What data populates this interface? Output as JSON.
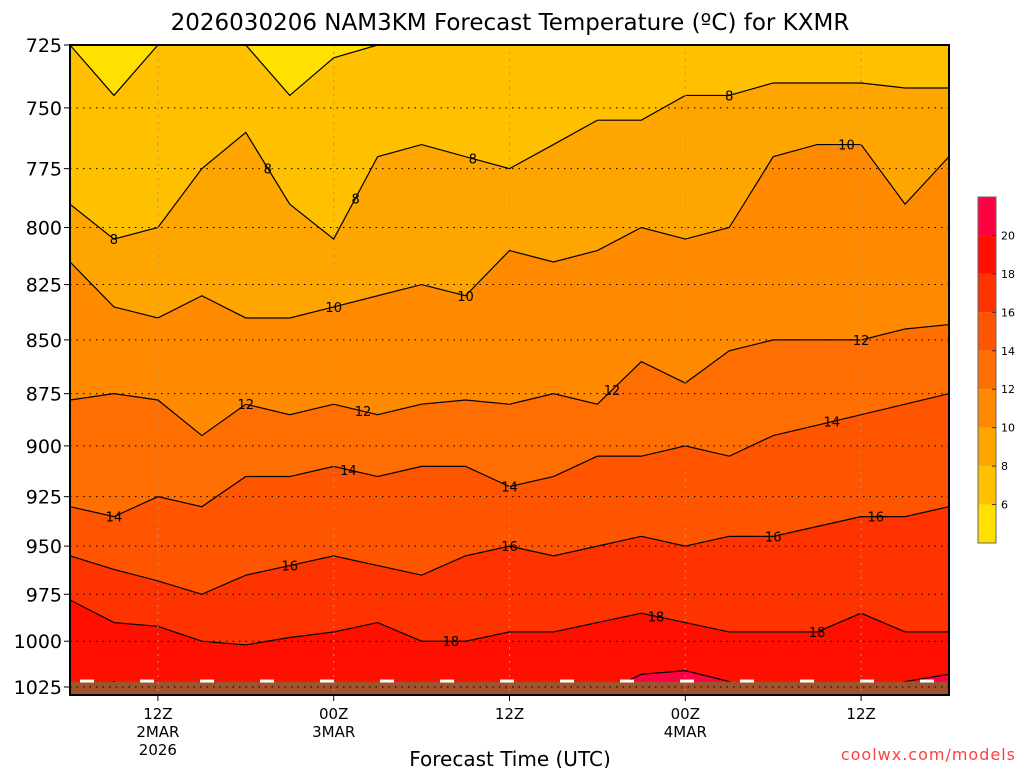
{
  "chart_data": {
    "type": "heatmap",
    "subtype": "filled-contour",
    "title": "2026030206 NAM3KM Forecast Temperature (ºC) for KXMR",
    "xlabel": "Forecast Time (UTC)",
    "ylabel": "",
    "watermark": "coolwx.com/models",
    "x_unit": "hours after 06Z 2MAR2026",
    "xlim": [
      0,
      60
    ],
    "ylim": [
      1030,
      725
    ],
    "y_scale": "log-pressure",
    "grid": true,
    "y_ticks": [
      725,
      750,
      775,
      800,
      825,
      850,
      875,
      900,
      925,
      950,
      975,
      1000,
      1025
    ],
    "x_ticks": [
      {
        "hour": 6,
        "lines": [
          "12Z",
          "2MAR",
          "2026"
        ]
      },
      {
        "hour": 18,
        "lines": [
          "00Z",
          "3MAR"
        ]
      },
      {
        "hour": 30,
        "lines": [
          "12Z"
        ]
      },
      {
        "hour": 42,
        "lines": [
          "00Z",
          "4MAR"
        ]
      },
      {
        "hour": 54,
        "lines": [
          "12Z"
        ]
      }
    ],
    "sample_hours": [
      0,
      3,
      6,
      9,
      12,
      15,
      18,
      21,
      24,
      27,
      30,
      33,
      36,
      39,
      42,
      45,
      48,
      51,
      54,
      57,
      60
    ],
    "isotherms": [
      {
        "level": 6,
        "pressure": [
          725,
          745,
          725,
          725,
          725,
          745,
          730,
          725,
          725,
          725,
          725,
          725,
          725,
          725,
          725,
          725,
          725,
          725,
          725,
          725,
          725
        ]
      },
      {
        "level": 8,
        "pressure": [
          790,
          805,
          800,
          775,
          760,
          790,
          805,
          770,
          765,
          770,
          775,
          765,
          755,
          755,
          745,
          745,
          740,
          740,
          740,
          742,
          742
        ]
      },
      {
        "level": 10,
        "pressure": [
          815,
          835,
          840,
          830,
          840,
          840,
          835,
          830,
          825,
          830,
          810,
          815,
          810,
          800,
          805,
          800,
          770,
          765,
          765,
          790,
          770
        ]
      },
      {
        "level": 12,
        "pressure": [
          878,
          875,
          878,
          895,
          880,
          885,
          880,
          885,
          880,
          878,
          880,
          875,
          880,
          860,
          870,
          855,
          850,
          850,
          850,
          845,
          843
        ]
      },
      {
        "level": 14,
        "pressure": [
          930,
          935,
          925,
          930,
          915,
          915,
          910,
          915,
          910,
          910,
          920,
          915,
          905,
          905,
          900,
          905,
          895,
          890,
          885,
          880,
          875
        ]
      },
      {
        "level": 16,
        "pressure": [
          955,
          962,
          968,
          975,
          965,
          960,
          955,
          960,
          965,
          955,
          950,
          955,
          950,
          945,
          950,
          945,
          945,
          940,
          935,
          935,
          930
        ]
      },
      {
        "level": 18,
        "pressure": [
          978,
          990,
          992,
          1000,
          1002,
          998,
          995,
          990,
          1000,
          1000,
          995,
          995,
          990,
          985,
          990,
          995,
          995,
          995,
          985,
          995,
          995
        ]
      },
      {
        "level": 20,
        "pressure": [
          1030,
          1022,
          1030,
          1030,
          1030,
          1030,
          1030,
          1030,
          1030,
          1030,
          1030,
          1030,
          1030,
          1018,
          1016,
          1022,
          1030,
          1030,
          1030,
          1022,
          1018
        ]
      }
    ],
    "surface_pressure": 1022,
    "contour_labels": [
      {
        "text": "8",
        "hour": 3,
        "level": 8
      },
      {
        "text": "8",
        "hour": 13.5,
        "level": 8
      },
      {
        "text": "8",
        "hour": 19.5,
        "level": 8
      },
      {
        "text": "8",
        "hour": 27.5,
        "level": 8
      },
      {
        "text": "8",
        "hour": 45,
        "level": 8
      },
      {
        "text": "10",
        "hour": 18,
        "level": 10
      },
      {
        "text": "10",
        "hour": 27,
        "level": 10
      },
      {
        "text": "10",
        "hour": 53,
        "level": 10
      },
      {
        "text": "12",
        "hour": 12,
        "level": 12
      },
      {
        "text": "12",
        "hour": 20,
        "level": 12
      },
      {
        "text": "12",
        "hour": 37,
        "level": 12
      },
      {
        "text": "12",
        "hour": 54,
        "level": 12
      },
      {
        "text": "14",
        "hour": 3,
        "level": 14
      },
      {
        "text": "14",
        "hour": 19,
        "level": 14
      },
      {
        "text": "14",
        "hour": 30,
        "level": 14
      },
      {
        "text": "14",
        "hour": 52,
        "level": 14
      },
      {
        "text": "16",
        "hour": 15,
        "level": 16
      },
      {
        "text": "16",
        "hour": 30,
        "level": 16
      },
      {
        "text": "16",
        "hour": 48,
        "level": 16
      },
      {
        "text": "16",
        "hour": 55,
        "level": 16
      },
      {
        "text": "18",
        "hour": 26,
        "level": 18
      },
      {
        "text": "18",
        "hour": 40,
        "level": 18
      },
      {
        "text": "18",
        "hour": 51,
        "level": 18
      }
    ],
    "colorbar": {
      "levels": [
        6,
        8,
        10,
        12,
        14,
        16,
        18,
        20
      ],
      "tick_labels": [
        "6",
        "8",
        "10",
        "12",
        "14",
        "16",
        "18",
        "20"
      ],
      "colors": [
        "#FFE000",
        "#FFC000",
        "#FFA500",
        "#FF8A00",
        "#FF6E00",
        "#FF5500",
        "#FF3300",
        "#FF0F00",
        "#FF0040"
      ]
    },
    "ground_color": "#A0522D"
  }
}
